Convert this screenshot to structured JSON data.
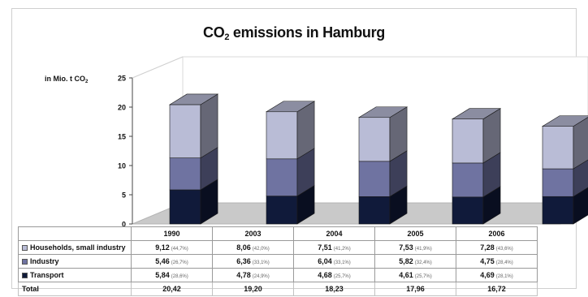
{
  "title_main": "CO",
  "title_sub": "2",
  "title_rest": " emissions in Hamburg",
  "ylabel_main": "in Mio. t CO",
  "ylabel_sub": "2",
  "total_label": "Total",
  "chart_data": {
    "type": "bar",
    "stacked": true,
    "style": "3d",
    "categories": [
      "1990",
      "2003",
      "2004",
      "2005",
      "2006"
    ],
    "ylim": [
      0,
      25
    ],
    "yticks": [
      0,
      5,
      10,
      15,
      20,
      25
    ],
    "grid": false,
    "series": [
      {
        "name": "Households, small industry",
        "color": "#b9bcd6",
        "values": [
          9.12,
          8.06,
          7.51,
          7.53,
          7.28
        ],
        "labels": [
          "9,12",
          "8,06",
          "7,51",
          "7,53",
          "7,28"
        ],
        "percents": [
          "(44,7%)",
          "(42,0%)",
          "(41,2%)",
          "(41,9%)",
          "(43,6%)"
        ]
      },
      {
        "name": "Industry",
        "color": "#6f73a1",
        "values": [
          5.46,
          6.36,
          6.04,
          5.82,
          4.75
        ],
        "labels": [
          "5,46",
          "6,36",
          "6,04",
          "5,82",
          "4,75"
        ],
        "percents": [
          "(26,7%)",
          "(33,1%)",
          "(33,1%)",
          "(32,4%)",
          "(28,4%)"
        ]
      },
      {
        "name": "Transport",
        "color": "#101a3a",
        "values": [
          5.84,
          4.78,
          4.68,
          4.61,
          4.69
        ],
        "labels": [
          "5,84",
          "4,78",
          "4,68",
          "4,61",
          "4,69"
        ],
        "percents": [
          "(28,6%)",
          "(24,9%)",
          "(25,7%)",
          "(25,7%)",
          "(28,1%)"
        ]
      }
    ],
    "totals": [
      "20,42",
      "19,20",
      "18,23",
      "17,96",
      "16,72"
    ]
  }
}
